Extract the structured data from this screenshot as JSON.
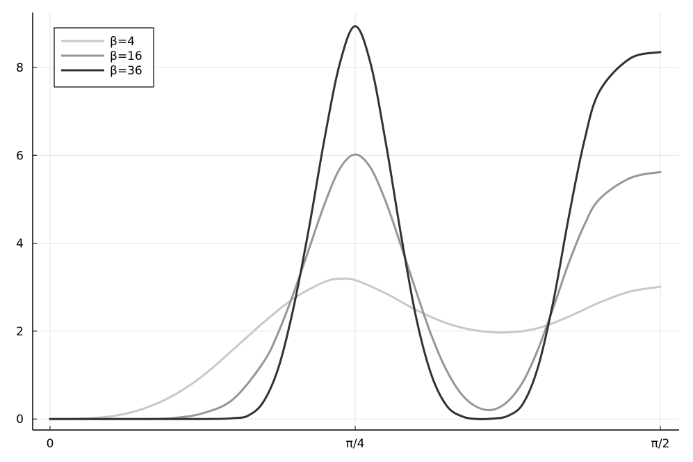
{
  "chart_data": {
    "type": "line",
    "title": "",
    "xlabel": "",
    "ylabel": "",
    "xlim": [
      0,
      1.5708
    ],
    "ylim": [
      -0.25,
      9.25
    ],
    "grid": true,
    "legend_position": "top-left",
    "x_ticks": [
      {
        "value": 0,
        "label": "0"
      },
      {
        "value": 0.7854,
        "label": "π/4"
      },
      {
        "value": 1.5708,
        "label": "π/2"
      }
    ],
    "y_ticks": [
      {
        "value": 0,
        "label": "0"
      },
      {
        "value": 2,
        "label": "2"
      },
      {
        "value": 4,
        "label": "4"
      },
      {
        "value": 6,
        "label": "6"
      },
      {
        "value": 8,
        "label": "8"
      }
    ],
    "series": [
      {
        "name": "β=4",
        "color": "#c8c8c8",
        "points": [
          [
            0,
            0
          ],
          [
            0.0785,
            0.01
          ],
          [
            0.1571,
            0.06
          ],
          [
            0.2356,
            0.22
          ],
          [
            0.3142,
            0.52
          ],
          [
            0.3927,
            0.98
          ],
          [
            0.4712,
            1.58
          ],
          [
            0.5498,
            2.2
          ],
          [
            0.6283,
            2.75
          ],
          [
            0.7069,
            3.12
          ],
          [
            0.7461,
            3.19
          ],
          [
            0.7854,
            3.16
          ],
          [
            0.8639,
            2.86
          ],
          [
            0.9425,
            2.48
          ],
          [
            1.021,
            2.18
          ],
          [
            1.0996,
            2.01
          ],
          [
            1.1781,
            1.97
          ],
          [
            1.2566,
            2.07
          ],
          [
            1.3352,
            2.33
          ],
          [
            1.4137,
            2.65
          ],
          [
            1.4923,
            2.9
          ],
          [
            1.5708,
            3.01
          ]
        ]
      },
      {
        "name": "β=16",
        "color": "#969696",
        "points": [
          [
            0,
            0
          ],
          [
            0.1571,
            0
          ],
          [
            0.2356,
            0
          ],
          [
            0.3142,
            0.02
          ],
          [
            0.3927,
            0.13
          ],
          [
            0.4712,
            0.45
          ],
          [
            0.5498,
            1.3
          ],
          [
            0.589,
            2.0
          ],
          [
            0.6283,
            2.9
          ],
          [
            0.6676,
            3.9
          ],
          [
            0.7069,
            4.9
          ],
          [
            0.7461,
            5.7
          ],
          [
            0.7854,
            6.02
          ],
          [
            0.8247,
            5.72
          ],
          [
            0.8639,
            4.95
          ],
          [
            0.9032,
            3.95
          ],
          [
            0.9425,
            2.9
          ],
          [
            0.9817,
            1.9
          ],
          [
            1.021,
            1.1
          ],
          [
            1.0603,
            0.55
          ],
          [
            1.0996,
            0.27
          ],
          [
            1.1389,
            0.21
          ],
          [
            1.1781,
            0.4
          ],
          [
            1.2174,
            0.85
          ],
          [
            1.2566,
            1.6
          ],
          [
            1.2959,
            2.55
          ],
          [
            1.3352,
            3.55
          ],
          [
            1.3744,
            4.4
          ],
          [
            1.4137,
            5.0
          ],
          [
            1.4923,
            5.48
          ],
          [
            1.5708,
            5.62
          ]
        ]
      },
      {
        "name": "β=36",
        "color": "#323232",
        "points": [
          [
            0,
            0
          ],
          [
            0.3927,
            0
          ],
          [
            0.4712,
            0.02
          ],
          [
            0.5105,
            0.08
          ],
          [
            0.5498,
            0.4
          ],
          [
            0.589,
            1.2
          ],
          [
            0.6283,
            2.6
          ],
          [
            0.6676,
            4.4
          ],
          [
            0.7069,
            6.4
          ],
          [
            0.7461,
            8.1
          ],
          [
            0.7854,
            8.94
          ],
          [
            0.8247,
            8.1
          ],
          [
            0.8639,
            6.3
          ],
          [
            0.9032,
            4.2
          ],
          [
            0.9425,
            2.3
          ],
          [
            0.9817,
            1.0
          ],
          [
            1.021,
            0.3
          ],
          [
            1.0603,
            0.06
          ],
          [
            1.0996,
            0
          ],
          [
            1.1389,
            0.01
          ],
          [
            1.1781,
            0.07
          ],
          [
            1.2174,
            0.35
          ],
          [
            1.2566,
            1.2
          ],
          [
            1.2959,
            2.7
          ],
          [
            1.3352,
            4.6
          ],
          [
            1.3744,
            6.3
          ],
          [
            1.4137,
            7.45
          ],
          [
            1.4923,
            8.2
          ],
          [
            1.5708,
            8.35
          ]
        ]
      }
    ]
  }
}
